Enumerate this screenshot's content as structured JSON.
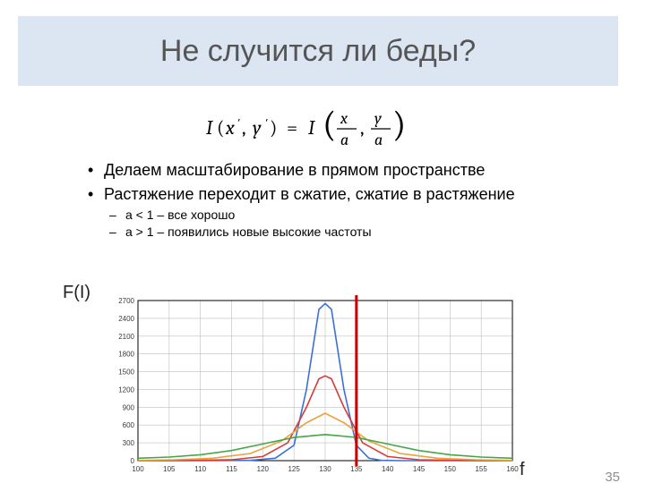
{
  "title": "Не случится ли беды?",
  "bullets": {
    "b1": "Делаем масштабирование в прямом пространстве",
    "b2": "Растяжение переходит в сжатие, сжатие в растяжение",
    "b2a": "a < 1 – все хорошо",
    "b2b": "a > 1 – появились новые высокие частоты"
  },
  "ylabel": "F(I)",
  "xlabel": "f",
  "pagenum": "35",
  "chart": {
    "type": "line",
    "xlim": [
      100,
      160
    ],
    "xtick_step": 5,
    "ylim": [
      0,
      2700
    ],
    "ytick_step": 300,
    "background_color": "#ffffff",
    "grid_color": "#bfbfbf",
    "axis_color": "#000000",
    "tick_fontsize": 8,
    "tick_color": "#3a3a3a",
    "line_width": 1.6,
    "vertical_line": {
      "x": 135,
      "color": "#cc0000",
      "width": 3
    },
    "series": [
      {
        "name": "blue",
        "color": "#3b6fd6",
        "x": [
          100,
          110,
          118,
          122,
          125,
          127,
          129,
          130,
          131,
          133,
          135,
          137,
          139,
          142,
          150,
          160
        ],
        "y": [
          0,
          0,
          5,
          40,
          260,
          1200,
          2550,
          2650,
          2550,
          1200,
          260,
          40,
          5,
          0,
          0,
          0
        ]
      },
      {
        "name": "red",
        "color": "#d63b3b",
        "x": [
          100,
          108,
          115,
          120,
          124,
          127,
          129,
          130,
          131,
          133,
          136,
          140,
          145,
          152,
          160
        ],
        "y": [
          0,
          3,
          15,
          70,
          300,
          900,
          1380,
          1430,
          1380,
          900,
          300,
          70,
          15,
          3,
          0
        ]
      },
      {
        "name": "orange",
        "color": "#e9a23b",
        "x": [
          100,
          106,
          112,
          118,
          123,
          127,
          130,
          133,
          137,
          142,
          148,
          154,
          160
        ],
        "y": [
          5,
          15,
          40,
          120,
          330,
          640,
          800,
          640,
          330,
          120,
          40,
          15,
          5
        ]
      },
      {
        "name": "green",
        "color": "#46a546",
        "x": [
          100,
          105,
          110,
          115,
          120,
          125,
          130,
          135,
          140,
          145,
          150,
          155,
          160
        ],
        "y": [
          40,
          60,
          100,
          170,
          280,
          390,
          440,
          390,
          280,
          170,
          100,
          60,
          40
        ]
      }
    ]
  }
}
